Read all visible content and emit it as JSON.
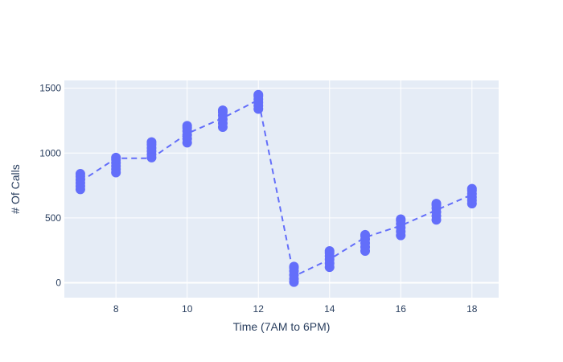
{
  "chart_data": {
    "type": "scatter",
    "title": "",
    "xlabel": "Time (7AM to 6PM)",
    "ylabel": "# Of Calls",
    "xlim": [
      6.55,
      18.75
    ],
    "ylim": [
      -115,
      1560
    ],
    "xticks": [
      8,
      10,
      12,
      14,
      16,
      18
    ],
    "yticks": [
      0,
      500,
      1000,
      1500
    ],
    "grid": true,
    "legend": "none",
    "colors": {
      "marker": "#636efa",
      "plot_bg": "#e5ecf6",
      "grid": "#ffffff",
      "text": "#2a3f5f"
    },
    "series": [
      {
        "mode": "markers",
        "points": [
          {
            "x": 7,
            "y": [
              720,
              745,
              770,
              795,
              820,
              840
            ]
          },
          {
            "x": 8,
            "y": [
              850,
              875,
              900,
              925,
              950,
              965
            ]
          },
          {
            "x": 9,
            "y": [
              965,
              990,
              1015,
              1040,
              1065,
              1085
            ]
          },
          {
            "x": 10,
            "y": [
              1080,
              1110,
              1140,
              1170,
              1195,
              1210
            ]
          },
          {
            "x": 11,
            "y": [
              1200,
              1230,
              1260,
              1290,
              1315,
              1330
            ]
          },
          {
            "x": 12,
            "y": [
              1340,
              1365,
              1390,
              1415,
              1440,
              1450
            ]
          },
          {
            "x": 13,
            "y": [
              5,
              30,
              60,
              90,
              115,
              125
            ]
          },
          {
            "x": 14,
            "y": [
              120,
              150,
              180,
              205,
              230,
              245
            ]
          },
          {
            "x": 15,
            "y": [
              245,
              275,
              305,
              335,
              360,
              370
            ]
          },
          {
            "x": 16,
            "y": [
              365,
              395,
              425,
              455,
              480,
              490
            ]
          },
          {
            "x": 17,
            "y": [
              485,
              515,
              545,
              575,
              600,
              610
            ]
          },
          {
            "x": 18,
            "y": [
              610,
              635,
              660,
              685,
              710,
              725
            ]
          }
        ]
      },
      {
        "mode": "lines",
        "dash": "dash",
        "x": [
          7,
          8,
          9,
          10,
          11,
          12,
          13,
          14,
          15,
          16,
          17,
          18
        ],
        "y": [
          780,
          960,
          960,
          1150,
          1270,
          1410,
          50,
          180,
          350,
          440,
          560,
          680
        ]
      }
    ]
  }
}
